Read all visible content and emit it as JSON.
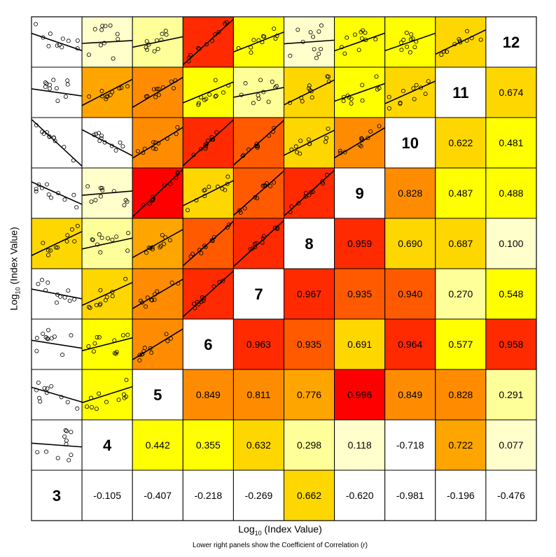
{
  "chart_data": {
    "type": "heatmap",
    "subtype": "pairs-correlation-matrix",
    "variables": [
      "3",
      "4",
      "5",
      "6",
      "7",
      "8",
      "9",
      "10",
      "11",
      "12"
    ],
    "xlabel": {
      "base": "Log",
      "sub": "10",
      "rest": " (Index Value)"
    },
    "ylabel": {
      "base": "Log",
      "sub": "10",
      "rest": " (Index Value)"
    },
    "caption": {
      "text": "Lower right panels show the Coefficient of Correlation (",
      "symbol": "r",
      "close": ")"
    },
    "correlations": [
      [
        "3",
        "4",
        "-0.105"
      ],
      [
        "3",
        "5",
        "-0.407"
      ],
      [
        "3",
        "6",
        "-0.218"
      ],
      [
        "3",
        "7",
        "-0.269"
      ],
      [
        "3",
        "8",
        "0.662"
      ],
      [
        "3",
        "9",
        "-0.620"
      ],
      [
        "3",
        "10",
        "-0.981"
      ],
      [
        "3",
        "11",
        "-0.196"
      ],
      [
        "3",
        "12",
        "-0.476"
      ],
      [
        "4",
        "5",
        "0.442"
      ],
      [
        "4",
        "6",
        "0.355"
      ],
      [
        "4",
        "7",
        "0.632"
      ],
      [
        "4",
        "8",
        "0.298"
      ],
      [
        "4",
        "9",
        "0.118"
      ],
      [
        "4",
        "10",
        "-0.718"
      ],
      [
        "4",
        "11",
        "0.722"
      ],
      [
        "4",
        "12",
        "0.077"
      ],
      [
        "5",
        "6",
        "0.849"
      ],
      [
        "5",
        "7",
        "0.811"
      ],
      [
        "5",
        "8",
        "0.776"
      ],
      [
        "5",
        "9",
        "0.996"
      ],
      [
        "5",
        "10",
        "0.849"
      ],
      [
        "5",
        "11",
        "0.828"
      ],
      [
        "5",
        "12",
        "0.291"
      ],
      [
        "6",
        "7",
        "0.963"
      ],
      [
        "6",
        "8",
        "0.935"
      ],
      [
        "6",
        "9",
        "0.691"
      ],
      [
        "6",
        "10",
        "0.964"
      ],
      [
        "6",
        "11",
        "0.577"
      ],
      [
        "6",
        "12",
        "0.958"
      ],
      [
        "7",
        "8",
        "0.967"
      ],
      [
        "7",
        "9",
        "0.935"
      ],
      [
        "7",
        "10",
        "0.940"
      ],
      [
        "7",
        "11",
        "0.270"
      ],
      [
        "7",
        "12",
        "0.548"
      ],
      [
        "8",
        "9",
        "0.959"
      ],
      [
        "8",
        "10",
        "0.690"
      ],
      [
        "8",
        "11",
        "0.687"
      ],
      [
        "8",
        "12",
        "0.100"
      ],
      [
        "9",
        "10",
        "0.828"
      ],
      [
        "9",
        "11",
        "0.487"
      ],
      [
        "9",
        "12",
        "0.488"
      ],
      [
        "10",
        "11",
        "0.622"
      ],
      [
        "10",
        "12",
        "0.481"
      ],
      [
        "11",
        "12",
        "0.674"
      ]
    ],
    "color_scale": [
      {
        "min": -1.0,
        "max": 0.05,
        "color": "#FFFFFF"
      },
      {
        "min": 0.05,
        "max": 0.2,
        "color": "#FFFFCC"
      },
      {
        "min": 0.2,
        "max": 0.35,
        "color": "#FFFF99"
      },
      {
        "min": 0.35,
        "max": 0.6,
        "color": "#FFFF00"
      },
      {
        "min": 0.6,
        "max": 0.7,
        "color": "#FFD700"
      },
      {
        "min": 0.7,
        "max": 0.8,
        "color": "#FFA500"
      },
      {
        "min": 0.8,
        "max": 0.9,
        "color": "#FF8C00"
      },
      {
        "min": 0.9,
        "max": 0.95,
        "color": "#FF5A00"
      },
      {
        "min": 0.95,
        "max": 0.98,
        "color": "#FF2A00"
      },
      {
        "min": 0.98,
        "max": 1.01,
        "color": "#FF0000"
      }
    ],
    "grid": true,
    "legend": "none"
  }
}
